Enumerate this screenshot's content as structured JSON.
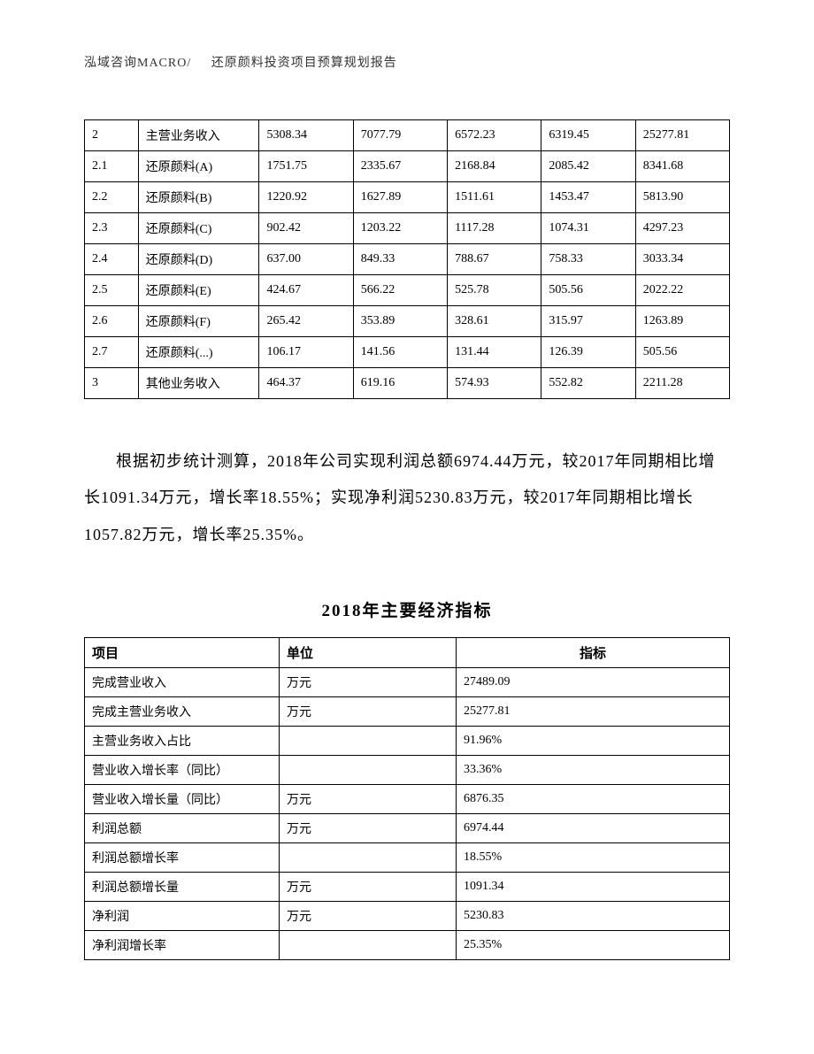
{
  "header": {
    "company": "泓域咨询MACRO/",
    "title": "还原颜料投资项目预算规划报告"
  },
  "table1": {
    "rows": [
      {
        "idx": "2",
        "name": "主营业务收入",
        "v1": "5308.34",
        "v2": "7077.79",
        "v3": "6572.23",
        "v4": "6319.45",
        "v5": "25277.81"
      },
      {
        "idx": "2.1",
        "name": "还原颜料(A)",
        "v1": "1751.75",
        "v2": "2335.67",
        "v3": "2168.84",
        "v4": "2085.42",
        "v5": "8341.68"
      },
      {
        "idx": "2.2",
        "name": "还原颜料(B)",
        "v1": "1220.92",
        "v2": "1627.89",
        "v3": "1511.61",
        "v4": "1453.47",
        "v5": "5813.90"
      },
      {
        "idx": "2.3",
        "name": "还原颜料(C)",
        "v1": "902.42",
        "v2": "1203.22",
        "v3": "1117.28",
        "v4": "1074.31",
        "v5": "4297.23"
      },
      {
        "idx": "2.4",
        "name": "还原颜料(D)",
        "v1": "637.00",
        "v2": "849.33",
        "v3": "788.67",
        "v4": "758.33",
        "v5": "3033.34"
      },
      {
        "idx": "2.5",
        "name": "还原颜料(E)",
        "v1": "424.67",
        "v2": "566.22",
        "v3": "525.78",
        "v4": "505.56",
        "v5": "2022.22"
      },
      {
        "idx": "2.6",
        "name": "还原颜料(F)",
        "v1": "265.42",
        "v2": "353.89",
        "v3": "328.61",
        "v4": "315.97",
        "v5": "1263.89"
      },
      {
        "idx": "2.7",
        "name": "还原颜料(...)",
        "v1": "106.17",
        "v2": "141.56",
        "v3": "131.44",
        "v4": "126.39",
        "v5": "505.56"
      },
      {
        "idx": "3",
        "name": "其他业务收入",
        "v1": "464.37",
        "v2": "619.16",
        "v3": "574.93",
        "v4": "552.82",
        "v5": "2211.28"
      }
    ]
  },
  "paragraph": {
    "text": "根据初步统计测算，2018年公司实现利润总额6974.44万元，较2017年同期相比增长1091.34万元，增长率18.55%；实现净利润5230.83万元，较2017年同期相比增长1057.82万元，增长率25.35%。"
  },
  "subtitle": "2018年主要经济指标",
  "table2": {
    "headers": {
      "item": "项目",
      "unit": "单位",
      "value": "指标"
    },
    "rows": [
      {
        "item": "完成营业收入",
        "unit": "万元",
        "value": "27489.09"
      },
      {
        "item": "完成主营业务收入",
        "unit": "万元",
        "value": "25277.81"
      },
      {
        "item": "主营业务收入占比",
        "unit": "",
        "value": "91.96%"
      },
      {
        "item": "营业收入增长率（同比）",
        "unit": "",
        "value": "33.36%"
      },
      {
        "item": "营业收入增长量（同比）",
        "unit": "万元",
        "value": "6876.35"
      },
      {
        "item": "利润总额",
        "unit": "万元",
        "value": "6974.44"
      },
      {
        "item": "利润总额增长率",
        "unit": "",
        "value": "18.55%"
      },
      {
        "item": "利润总额增长量",
        "unit": "万元",
        "value": "1091.34"
      },
      {
        "item": "净利润",
        "unit": "万元",
        "value": "5230.83"
      },
      {
        "item": "净利润增长率",
        "unit": "",
        "value": "25.35%"
      }
    ]
  }
}
